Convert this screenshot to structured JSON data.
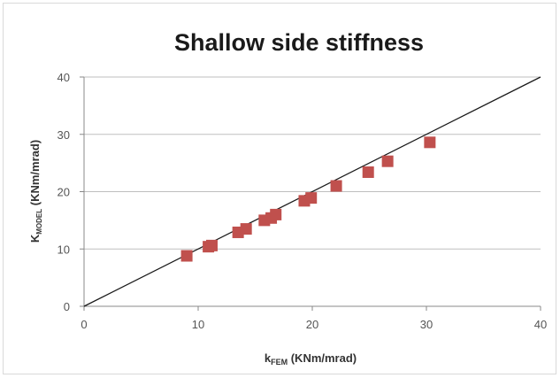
{
  "chart_data": {
    "type": "scatter",
    "title": "Shallow side stiffness",
    "xlabel": {
      "main": "k",
      "sub": "FEM",
      "rest": " (KNm/mrad)"
    },
    "ylabel": {
      "main": "K",
      "sub": "MODEL",
      "rest": " (KNm/mrad)"
    },
    "xlim": [
      0,
      40
    ],
    "ylim": [
      0,
      40
    ],
    "xticks": [
      0,
      10,
      20,
      30,
      40
    ],
    "yticks": [
      0,
      10,
      20,
      30,
      40
    ],
    "grid": "horizontal",
    "legend": "none",
    "series": [
      {
        "marker_color": "#c0504d",
        "points": [
          [
            9.0,
            8.8
          ],
          [
            10.9,
            10.4
          ],
          [
            11.2,
            10.6
          ],
          [
            13.5,
            12.9
          ],
          [
            14.2,
            13.5
          ],
          [
            15.8,
            15.0
          ],
          [
            16.4,
            15.4
          ],
          [
            16.8,
            16.0
          ],
          [
            19.3,
            18.4
          ],
          [
            19.9,
            18.9
          ],
          [
            22.1,
            21.0
          ],
          [
            24.9,
            23.4
          ],
          [
            26.6,
            25.3
          ],
          [
            30.3,
            28.6
          ]
        ]
      }
    ],
    "reference_line": {
      "from": [
        0,
        0
      ],
      "to": [
        40,
        40
      ],
      "color": "#1a1a1a"
    }
  }
}
